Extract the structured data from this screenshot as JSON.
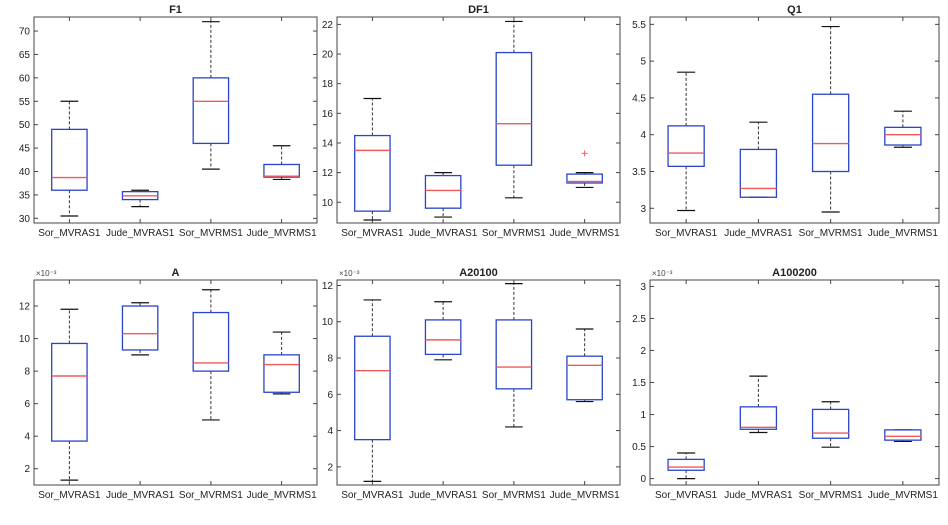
{
  "figure": {
    "colors": {
      "box": "#2a45c9",
      "median": "#f05a5a",
      "whisker": "#333333",
      "outlier": "#f05a5a",
      "axes": "#444444"
    },
    "categories": [
      "Sor_MVRAS1",
      "Jude_MVRAS1",
      "Sor_MVRMS1",
      "Jude_MVRMS1"
    ]
  },
  "chart_data": [
    {
      "type": "box",
      "title": "F1",
      "multiplier": "",
      "ylim": [
        29,
        73
      ],
      "yticks": [
        30,
        35,
        40,
        45,
        50,
        55,
        60,
        65,
        70
      ],
      "ytick_labels": [
        "30",
        "35",
        "40",
        "45",
        "50",
        "55",
        "60",
        "65",
        "70"
      ],
      "boxes": [
        {
          "min": 30.5,
          "q1": 36,
          "median": 38.7,
          "q3": 49,
          "max": 55,
          "outliers": []
        },
        {
          "min": 32.5,
          "q1": 34,
          "median": 34.8,
          "q3": 35.7,
          "max": 36,
          "outliers": []
        },
        {
          "min": 40.5,
          "q1": 46,
          "median": 55,
          "q3": 60,
          "max": 72,
          "outliers": []
        },
        {
          "min": 38.3,
          "q1": 38.8,
          "median": 39,
          "q3": 41.5,
          "max": 45.5,
          "outliers": []
        }
      ]
    },
    {
      "type": "box",
      "title": "DF1",
      "multiplier": "",
      "ylim": [
        8.6,
        22.5
      ],
      "yticks": [
        10,
        12,
        14,
        16,
        18,
        20,
        22
      ],
      "ytick_labels": [
        "10",
        "12",
        "14",
        "16",
        "18",
        "20",
        "22"
      ],
      "boxes": [
        {
          "min": 8.8,
          "q1": 9.4,
          "median": 13.5,
          "q3": 14.5,
          "max": 17,
          "outliers": []
        },
        {
          "min": 9,
          "q1": 9.6,
          "median": 10.8,
          "q3": 11.8,
          "max": 12,
          "outliers": []
        },
        {
          "min": 10.3,
          "q1": 12.5,
          "median": 15.3,
          "q3": 20.1,
          "max": 22.2,
          "outliers": []
        },
        {
          "min": 11,
          "q1": 11.3,
          "median": 11.4,
          "q3": 11.9,
          "max": 12,
          "outliers": [
            13.3
          ]
        }
      ]
    },
    {
      "type": "box",
      "title": "Q1",
      "multiplier": "",
      "ylim": [
        2.8,
        5.6
      ],
      "yticks": [
        3,
        3.5,
        4,
        4.5,
        5,
        5.5
      ],
      "ytick_labels": [
        "3",
        "3.5",
        "4",
        "4.5",
        "5",
        "5.5"
      ],
      "boxes": [
        {
          "min": 2.97,
          "q1": 3.57,
          "median": 3.75,
          "q3": 4.12,
          "max": 4.85,
          "outliers": []
        },
        {
          "min": 3.15,
          "q1": 3.15,
          "median": 3.27,
          "q3": 3.8,
          "max": 4.17,
          "outliers": []
        },
        {
          "min": 2.95,
          "q1": 3.5,
          "median": 3.88,
          "q3": 4.55,
          "max": 5.47,
          "outliers": []
        },
        {
          "min": 3.83,
          "q1": 3.86,
          "median": 4,
          "q3": 4.1,
          "max": 4.32,
          "outliers": []
        }
      ]
    },
    {
      "type": "box",
      "title": "A",
      "multiplier": "×10⁻³",
      "ylim": [
        1,
        13.6
      ],
      "yticks": [
        2,
        4,
        6,
        8,
        10,
        12
      ],
      "ytick_labels": [
        "2",
        "4",
        "6",
        "8",
        "10",
        "12"
      ],
      "boxes": [
        {
          "min": 1.3,
          "q1": 3.7,
          "median": 7.7,
          "q3": 9.7,
          "max": 11.8,
          "outliers": []
        },
        {
          "min": 9,
          "q1": 9.3,
          "median": 10.3,
          "q3": 12,
          "max": 12.2,
          "outliers": []
        },
        {
          "min": 5,
          "q1": 8,
          "median": 8.5,
          "q3": 11.6,
          "max": 13,
          "outliers": []
        },
        {
          "min": 6.6,
          "q1": 6.7,
          "median": 8.4,
          "q3": 9,
          "max": 10.4,
          "outliers": []
        }
      ]
    },
    {
      "type": "box",
      "title": "A20100",
      "multiplier": "×10⁻³",
      "ylim": [
        1,
        12.3
      ],
      "yticks": [
        2,
        4,
        6,
        8,
        10,
        12
      ],
      "ytick_labels": [
        "2",
        "4",
        "6",
        "8",
        "10",
        "12"
      ],
      "boxes": [
        {
          "min": 1.2,
          "q1": 3.5,
          "median": 7.3,
          "q3": 9.2,
          "max": 11.2,
          "outliers": []
        },
        {
          "min": 7.9,
          "q1": 8.2,
          "median": 9,
          "q3": 10.1,
          "max": 11.1,
          "outliers": []
        },
        {
          "min": 4.2,
          "q1": 6.3,
          "median": 7.5,
          "q3": 10.1,
          "max": 12.1,
          "outliers": []
        },
        {
          "min": 5.6,
          "q1": 5.7,
          "median": 7.6,
          "q3": 8.1,
          "max": 9.6,
          "outliers": []
        }
      ]
    },
    {
      "type": "box",
      "title": "A100200",
      "multiplier": "×10⁻³",
      "ylim": [
        -0.1,
        3.1
      ],
      "yticks": [
        0,
        0.5,
        1,
        1.5,
        2,
        2.5,
        3
      ],
      "ytick_labels": [
        "0",
        "0.5",
        "1",
        "1.5",
        "2",
        "2.5",
        "3"
      ],
      "boxes": [
        {
          "min": 0,
          "q1": 0.13,
          "median": 0.18,
          "q3": 0.3,
          "max": 0.4,
          "outliers": []
        },
        {
          "min": 0.72,
          "q1": 0.77,
          "median": 0.8,
          "q3": 1.12,
          "max": 1.6,
          "outliers": []
        },
        {
          "min": 0.49,
          "q1": 0.63,
          "median": 0.71,
          "q3": 1.08,
          "max": 1.2,
          "outliers": []
        },
        {
          "min": 0.58,
          "q1": 0.6,
          "median": 0.66,
          "q3": 0.76,
          "max": 0.76,
          "outliers": []
        }
      ]
    }
  ]
}
